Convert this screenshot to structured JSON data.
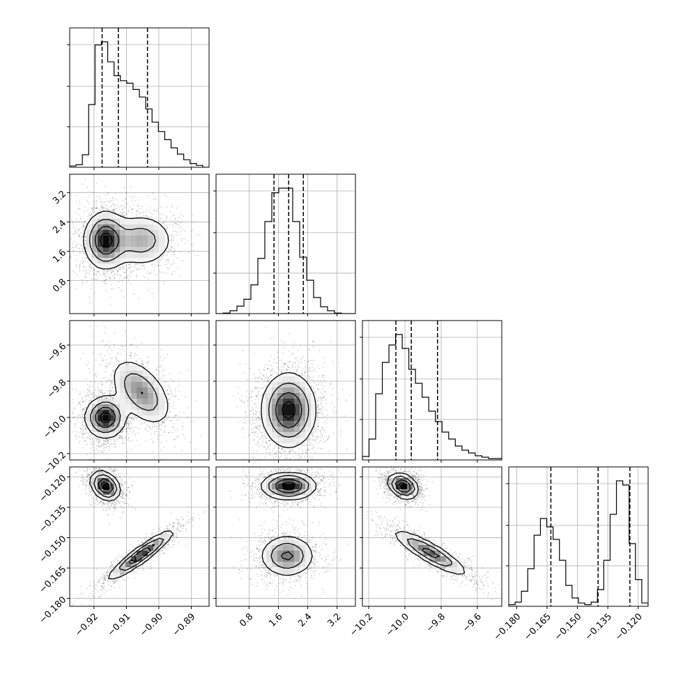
{
  "chart_data": {
    "type": "corner",
    "grid": true,
    "quantile_line_style": "dashed",
    "parameters": [
      {
        "xlim": [
          -0.9275,
          -0.8845
        ],
        "ticks": [
          "-0.92",
          "-0.91",
          "-0.90",
          "-0.89"
        ],
        "tick_values": [
          -0.92,
          -0.91,
          -0.9,
          -0.89
        ],
        "quantiles": [
          -0.9175,
          -0.9125,
          -0.9035
        ],
        "hist_bins": [
          2,
          4,
          20,
          100,
          195,
          200,
          168,
          146,
          138,
          134,
          124,
          112,
          93,
          72,
          57,
          44,
          31,
          21,
          12,
          6,
          3,
          0
        ]
      },
      {
        "xlim": [
          -0.1,
          3.7
        ],
        "ticks": [
          "0.8",
          "1.6",
          "2.4",
          "3.2"
        ],
        "tick_values": [
          0.8,
          1.6,
          2.4,
          3.2
        ],
        "quantiles": [
          1.48,
          1.88,
          2.28
        ],
        "hist_bins": [
          0,
          1,
          5,
          13,
          25,
          50,
          96,
          160,
          210,
          218,
          218,
          160,
          98,
          58,
          28,
          12,
          5,
          1,
          0,
          0
        ]
      },
      {
        "xlim": [
          -10.235,
          -9.465
        ],
        "ticks": [
          "-10.2",
          "-10.0",
          "-9.8",
          "-9.6"
        ],
        "tick_values": [
          -10.2,
          -10.0,
          -9.8,
          -9.6
        ],
        "quantiles": [
          -10.05,
          -9.965,
          -9.82
        ],
        "hist_bins": [
          5,
          30,
          95,
          140,
          165,
          180,
          160,
          130,
          110,
          90,
          70,
          55,
          40,
          30,
          20,
          14,
          10,
          6,
          4,
          2,
          2
        ]
      },
      {
        "xlim": [
          -0.1839,
          -0.1151
        ],
        "ticks": [
          "-0.180",
          "-0.165",
          "-0.150",
          "-0.135",
          "-0.120"
        ],
        "tick_values": [
          -0.18,
          -0.165,
          -0.15,
          -0.135,
          -0.12
        ],
        "quantiles": [
          -0.1631,
          -0.1398,
          -0.1241
        ],
        "hist_bins": [
          2,
          5,
          18,
          45,
          85,
          105,
          95,
          80,
          55,
          25,
          10,
          4,
          2,
          5,
          20,
          55,
          110,
          150,
          145,
          75,
          32,
          4
        ]
      }
    ],
    "pair_blobs": {
      "1,0": [
        {
          "x": -0.9165,
          "y": 1.9,
          "sx": 0.0032,
          "sy": 0.38,
          "rho": 0.0,
          "w": 1.0
        },
        {
          "x": -0.9055,
          "y": 1.9,
          "sx": 0.005,
          "sy": 0.36,
          "rho": 0.0,
          "w": 0.5
        }
      ],
      "2,0": [
        {
          "x": -0.9165,
          "y": -10.0,
          "sx": 0.003,
          "sy": 0.055,
          "rho": 0.0,
          "w": 1.0
        },
        {
          "x": -0.9055,
          "y": -9.86,
          "sx": 0.0045,
          "sy": 0.09,
          "rho": -0.5,
          "w": 0.6
        }
      ],
      "2,1": [
        {
          "x": 1.88,
          "y": -9.96,
          "sx": 0.36,
          "sy": 0.1,
          "rho": 0.0,
          "w": 1.0
        }
      ],
      "3,0": [
        {
          "x": -0.9165,
          "y": -0.1245,
          "sx": 0.0022,
          "sy": 0.0035,
          "rho": -0.3,
          "w": 1.0
        },
        {
          "x": -0.9055,
          "y": -0.1585,
          "sx": 0.005,
          "sy": 0.006,
          "rho": 0.93,
          "w": 0.85
        }
      ],
      "3,1": [
        {
          "x": 1.88,
          "y": -0.1245,
          "sx": 0.36,
          "sy": 0.0032,
          "rho": 0.0,
          "w": 1.0
        },
        {
          "x": 1.84,
          "y": -0.159,
          "sx": 0.36,
          "sy": 0.005,
          "rho": 0.0,
          "w": 0.65
        }
      ],
      "3,2": [
        {
          "x": -10.01,
          "y": -0.1245,
          "sx": 0.04,
          "sy": 0.003,
          "rho": -0.3,
          "w": 1.0
        },
        {
          "x": -9.86,
          "y": -0.1575,
          "sx": 0.1,
          "sy": 0.0055,
          "rho": -0.88,
          "w": 0.7
        }
      ]
    }
  }
}
